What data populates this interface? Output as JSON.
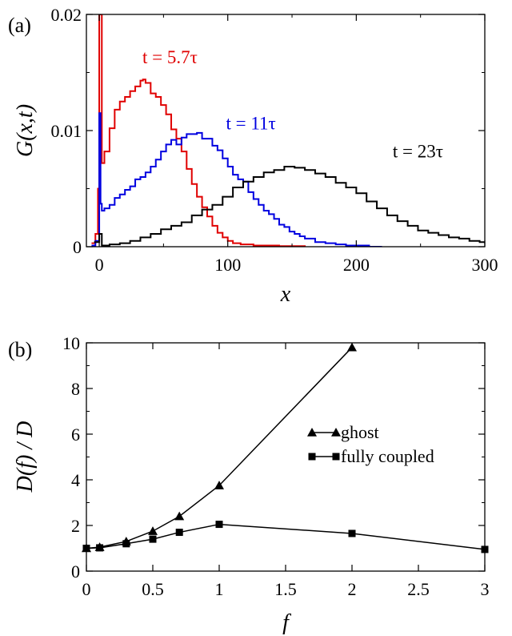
{
  "chart_data": [
    {
      "panel": "(a)",
      "type": "line",
      "xlabel": "x",
      "ylabel": "G(x,t)",
      "xlim": [
        -10,
        300
      ],
      "ylim": [
        0,
        0.02
      ],
      "xticks": [
        0,
        100,
        200,
        300
      ],
      "xtick_labels": [
        "0",
        "100",
        "200",
        "300"
      ],
      "yticks": [
        0,
        0.01,
        0.02
      ],
      "ytick_labels": [
        "0",
        "0.01",
        "0.02"
      ],
      "grid": false,
      "series": [
        {
          "name": "t = 5.7τ",
          "color": "#e00000",
          "x": [
            -6,
            -3,
            -1,
            0,
            1,
            2,
            4,
            8,
            12,
            16,
            20,
            24,
            28,
            32,
            34,
            36,
            40,
            44,
            48,
            52,
            56,
            60,
            64,
            68,
            72,
            76,
            80,
            84,
            88,
            92,
            96,
            100,
            104,
            110,
            120,
            140,
            160
          ],
          "y": [
            0.0003,
            0.0011,
            0.005,
            0.02,
            0.02,
            0.0072,
            0.0082,
            0.0102,
            0.0118,
            0.0125,
            0.0129,
            0.0134,
            0.0138,
            0.0143,
            0.0144,
            0.0141,
            0.0132,
            0.0129,
            0.0122,
            0.0114,
            0.0101,
            0.0093,
            0.0082,
            0.0067,
            0.0054,
            0.0043,
            0.0034,
            0.0026,
            0.0018,
            0.0012,
            0.0008,
            0.0005,
            0.0003,
            0.0002,
            0.0001,
            5e-05,
            0.0
          ]
        },
        {
          "name": "t = 11τ",
          "color": "#0000e0",
          "x": [
            -6,
            -3,
            0,
            1,
            2,
            4,
            8,
            12,
            16,
            20,
            24,
            28,
            32,
            36,
            40,
            44,
            48,
            52,
            56,
            60,
            64,
            68,
            72,
            76,
            80,
            84,
            88,
            92,
            96,
            100,
            104,
            108,
            112,
            116,
            120,
            124,
            128,
            132,
            136,
            140,
            144,
            148,
            152,
            156,
            160,
            168,
            176,
            184,
            192,
            200,
            210,
            220
          ],
          "y": [
            0.0001,
            0.0005,
            0.0115,
            0.0037,
            0.0031,
            0.0033,
            0.0036,
            0.0042,
            0.0045,
            0.0049,
            0.0052,
            0.0058,
            0.006,
            0.0064,
            0.0069,
            0.0075,
            0.0082,
            0.0088,
            0.0092,
            0.0088,
            0.0094,
            0.0097,
            0.0097,
            0.0098,
            0.0093,
            0.0093,
            0.0087,
            0.0083,
            0.0076,
            0.0069,
            0.0062,
            0.0058,
            0.0056,
            0.0047,
            0.0041,
            0.0036,
            0.0031,
            0.0028,
            0.0024,
            0.0019,
            0.0017,
            0.0013,
            0.0011,
            0.0009,
            0.0007,
            0.0004,
            0.0003,
            0.0002,
            0.0001,
            0.0001,
            0.0,
            0.0
          ]
        },
        {
          "name": "t = 23τ",
          "color": "#000000",
          "x": [
            -4,
            0,
            2,
            8,
            16,
            24,
            32,
            40,
            48,
            56,
            64,
            72,
            80,
            88,
            96,
            104,
            112,
            120,
            128,
            136,
            144,
            152,
            160,
            168,
            176,
            184,
            192,
            200,
            208,
            216,
            224,
            232,
            240,
            248,
            256,
            264,
            272,
            280,
            288,
            296,
            300
          ],
          "y": [
            0.0004,
            0.0011,
            0.0001,
            0.0002,
            0.0003,
            0.0005,
            0.0008,
            0.0011,
            0.0015,
            0.0018,
            0.0021,
            0.0027,
            0.0032,
            0.0036,
            0.0043,
            0.0051,
            0.0056,
            0.006,
            0.0064,
            0.0066,
            0.0069,
            0.0068,
            0.0066,
            0.0063,
            0.006,
            0.0055,
            0.0051,
            0.0046,
            0.0039,
            0.0033,
            0.0027,
            0.0022,
            0.0018,
            0.0014,
            0.0012,
            0.001,
            0.0008,
            0.0007,
            0.0005,
            0.0004,
            0.0003
          ]
        }
      ],
      "annotations": [
        {
          "text": "t = 5.7τ",
          "color": "#e00000",
          "x": 55,
          "y": 0.0158
        },
        {
          "text": "t = 11τ",
          "color": "#0000e0",
          "x": 118,
          "y": 0.0101
        },
        {
          "text": "t = 23τ",
          "color": "#000000",
          "x": 248,
          "y": 0.0077
        }
      ]
    },
    {
      "panel": "(b)",
      "type": "line",
      "xlabel": "f",
      "ylabel": "D(f) / D",
      "xlim": [
        0,
        3
      ],
      "ylim": [
        0,
        10
      ],
      "xticks": [
        0,
        0.5,
        1,
        1.5,
        2,
        2.5,
        3
      ],
      "xtick_labels": [
        "0",
        "0.5",
        "1",
        "1.5",
        "2",
        "2.5",
        "3"
      ],
      "yticks": [
        0,
        2,
        4,
        6,
        8,
        10
      ],
      "ytick_labels": [
        "0",
        "2",
        "4",
        "6",
        "8",
        "10"
      ],
      "grid": false,
      "legend_position": "right",
      "series": [
        {
          "name": "ghost",
          "marker": "triangle",
          "color": "#000000",
          "x": [
            0,
            0.1,
            0.3,
            0.5,
            0.7,
            1,
            2
          ],
          "y": [
            1.0,
            1.05,
            1.3,
            1.75,
            2.4,
            3.75,
            9.8
          ]
        },
        {
          "name": "fully coupled",
          "marker": "square",
          "color": "#000000",
          "x": [
            0,
            0.1,
            0.3,
            0.5,
            0.7,
            1,
            2,
            3
          ],
          "y": [
            1.0,
            1.02,
            1.2,
            1.4,
            1.7,
            2.05,
            1.65,
            0.95
          ]
        }
      ]
    }
  ]
}
